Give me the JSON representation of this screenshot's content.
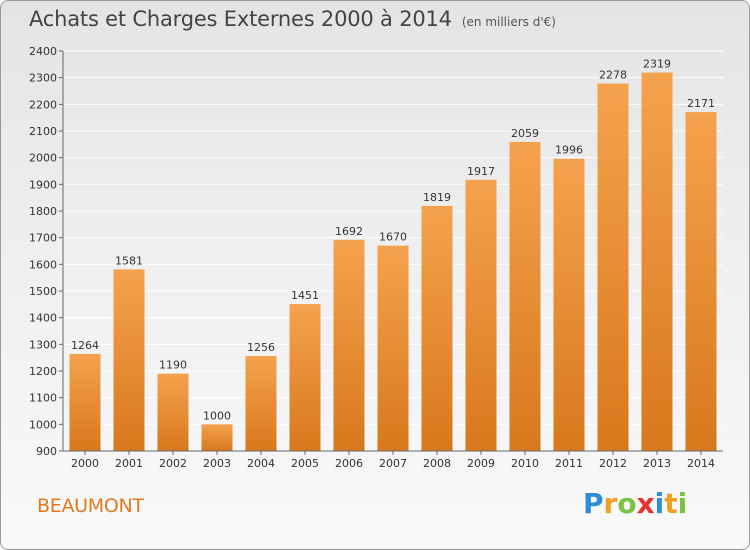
{
  "header": {
    "title": "Achats et Charges Externes 2000 à 2014",
    "subtitle": "(en milliers d'€)"
  },
  "footer": {
    "commune": "BEAUMONT",
    "logo_letters": [
      "P",
      "r",
      "o",
      "x",
      "i",
      "t",
      "i"
    ],
    "logo_colors": [
      "#2a8fd6",
      "#f0a020",
      "#7cc242",
      "#e8312f",
      "#2a8fd6",
      "#f0a020",
      "#7cc242"
    ]
  },
  "colors": {
    "bar_top": "#f5a24e",
    "bar_bottom": "#d8781c",
    "grid": "#ffffff",
    "accent": "#e07a1c"
  },
  "chart_data": {
    "type": "bar",
    "title": "Achats et Charges Externes 2000 à 2014",
    "subtitle": "(en milliers d'€)",
    "xlabel": "",
    "ylabel": "",
    "categories": [
      "2000",
      "2001",
      "2002",
      "2003",
      "2004",
      "2005",
      "2006",
      "2007",
      "2008",
      "2009",
      "2010",
      "2011",
      "2012",
      "2013",
      "2014"
    ],
    "values": [
      1264,
      1581,
      1190,
      1000,
      1256,
      1451,
      1692,
      1670,
      1819,
      1917,
      2059,
      1996,
      2278,
      2319,
      2171
    ],
    "ylim": [
      900,
      2400
    ],
    "yticks": [
      900,
      1000,
      1100,
      1200,
      1300,
      1400,
      1500,
      1600,
      1700,
      1800,
      1900,
      2000,
      2100,
      2200,
      2300,
      2400
    ],
    "grid": true
  }
}
